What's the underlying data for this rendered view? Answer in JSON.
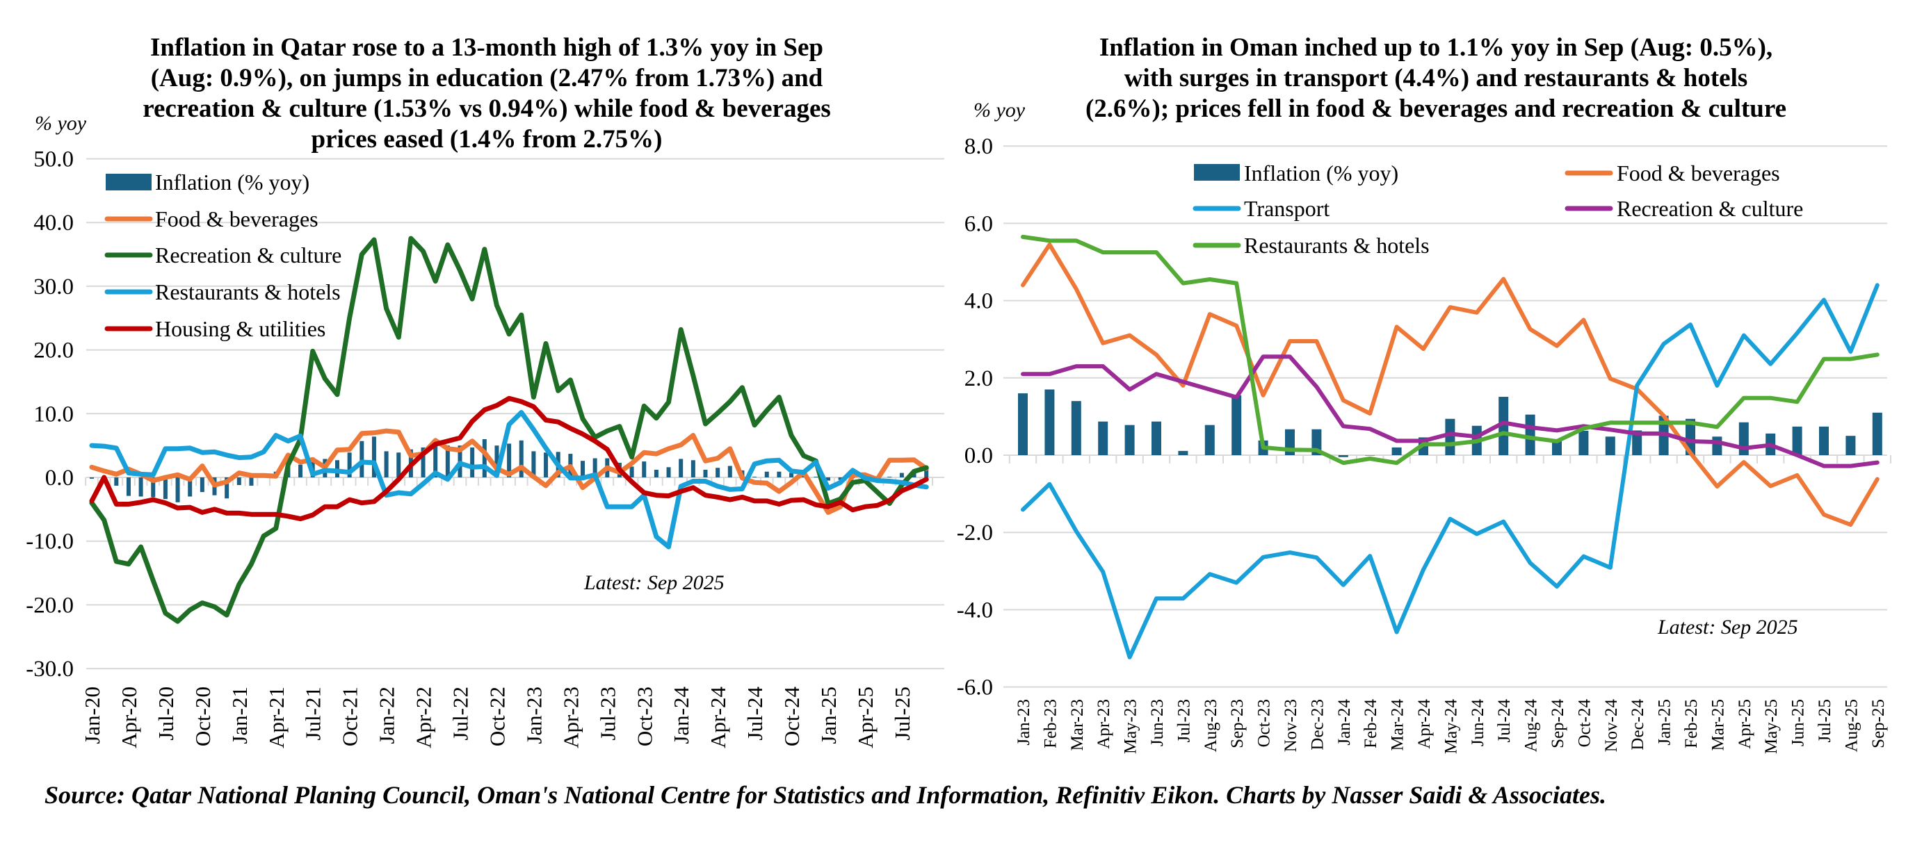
{
  "source": "Source: Qatar National Planing Council, Oman's National Centre for Statistics and Information, Refinitiv Eikon. Charts by Nasser Saidi & Associates.",
  "colors": {
    "inflation_bar": "#1a5f84",
    "food": "#ed7838",
    "recreation_qatar": "#1f6e26",
    "restaurants_qatar": "#1aa0d8",
    "housing": "#c00000",
    "transport": "#19a0d8",
    "recreation_oman": "#9b2b96",
    "restaurants_oman": "#53aa34",
    "grid": "#d9d9d9"
  },
  "chart_data": [
    {
      "id": "qatar",
      "type": "bar+line",
      "title_lines": [
        "Inflation in Qatar rose to a 13-month high of 1.3% yoy in Sep",
        "(Aug: 0.9%), on jumps in education (2.47% from 1.73%) and",
        "recreation & culture (1.53% vs 0.94%) while food & beverages",
        "prices eased (1.4% from 2.75%)"
      ],
      "ylabel": "% yoy",
      "ylim": [
        -30,
        50
      ],
      "yticks": [
        50,
        40,
        30,
        20,
        10,
        0,
        -10,
        -20,
        -30
      ],
      "ytick_labels": [
        "50.0",
        "40.0",
        "30.0",
        "20.0",
        "10.0",
        "0.0",
        "-10.0",
        "-20.0",
        "-30.0"
      ],
      "grid": true,
      "legend_position": "top-left",
      "annotation": "Latest: Sep 2025",
      "x": [
        "Jan-20",
        "Feb-20",
        "Mar-20",
        "Apr-20",
        "May-20",
        "Jun-20",
        "Jul-20",
        "Aug-20",
        "Sep-20",
        "Oct-20",
        "Nov-20",
        "Dec-20",
        "Jan-21",
        "Feb-21",
        "Mar-21",
        "Apr-21",
        "May-21",
        "Jun-21",
        "Jul-21",
        "Aug-21",
        "Sep-21",
        "Oct-21",
        "Nov-21",
        "Dec-21",
        "Jan-22",
        "Feb-22",
        "Mar-22",
        "Apr-22",
        "May-22",
        "Jun-22",
        "Jul-22",
        "Aug-22",
        "Sep-22",
        "Oct-22",
        "Nov-22",
        "Dec-22",
        "Jan-23",
        "Feb-23",
        "Mar-23",
        "Apr-23",
        "May-23",
        "Jun-23",
        "Jul-23",
        "Aug-23",
        "Sep-23",
        "Oct-23",
        "Nov-23",
        "Dec-23",
        "Jan-24",
        "Feb-24",
        "Mar-24",
        "Apr-24",
        "May-24",
        "Jun-24",
        "Jul-24",
        "Aug-24",
        "Sep-24",
        "Oct-24",
        "Nov-24",
        "Dec-24",
        "Jan-25",
        "Feb-25",
        "Mar-25",
        "Apr-25",
        "May-25",
        "Jun-25",
        "Jul-25",
        "Aug-25",
        "Sep-25"
      ],
      "xtick_labels": [
        "Jan-20",
        "Apr-20",
        "Jul-20",
        "Oct-20",
        "Jan-21",
        "Apr-21",
        "Jul-21",
        "Oct-21",
        "Jan-22",
        "Apr-22",
        "Jul-22",
        "Oct-22",
        "Jan-23",
        "Apr-23",
        "Jul-23",
        "Oct-23",
        "Jan-24",
        "Apr-24",
        "Jul-24",
        "Oct-24",
        "Jan-25",
        "Apr-25",
        "Jul-25"
      ],
      "series": [
        {
          "name": "Inflation (% yoy)",
          "kind": "bar",
          "color_key": "inflation_bar",
          "values": [
            -0.2,
            0.0,
            -1.3,
            -2.9,
            -3.0,
            -3.1,
            -3.4,
            -3.9,
            -3.0,
            -2.3,
            -2.8,
            -3.3,
            -1.2,
            -1.3,
            0.0,
            0.9,
            1.6,
            2.0,
            3.1,
            2.9,
            2.7,
            3.9,
            5.7,
            6.4,
            4.1,
            3.9,
            4.4,
            4.7,
            5.0,
            5.0,
            5.0,
            4.7,
            6.0,
            5.0,
            5.3,
            5.8,
            4.1,
            3.9,
            4.0,
            3.7,
            2.6,
            3.0,
            3.0,
            2.3,
            1.7,
            2.5,
            1.2,
            1.6,
            2.9,
            2.7,
            1.2,
            1.5,
            1.8,
            1.1,
            0.1,
            0.9,
            0.9,
            0.7,
            0.6,
            0.1,
            -0.5,
            -0.4,
            -0.1,
            0.1,
            0.1,
            0.1,
            0.7,
            0.9,
            1.3
          ]
        },
        {
          "name": "Food & beverages",
          "kind": "line",
          "color_key": "food",
          "values": [
            1.6,
            1.0,
            0.5,
            1.3,
            0.5,
            -0.5,
            0.0,
            0.4,
            -0.3,
            1.8,
            -1.2,
            -0.7,
            0.7,
            0.3,
            0.3,
            0.2,
            3.5,
            2.4,
            2.8,
            1.6,
            4.3,
            4.4,
            6.9,
            7.0,
            7.3,
            7.1,
            3.4,
            3.7,
            5.8,
            4.5,
            4.3,
            5.7,
            3.9,
            1.4,
            0.5,
            1.6,
            0.1,
            -1.3,
            0.8,
            1.7,
            -1.6,
            -0.1,
            1.5,
            0.8,
            2.2,
            3.9,
            3.7,
            4.5,
            5.1,
            6.6,
            2.6,
            3.0,
            4.5,
            -0.1,
            -0.8,
            -0.9,
            -2.2,
            -0.8,
            0.8,
            -2.3,
            -5.5,
            -4.6,
            0.4,
            0.4,
            -0.3,
            2.7,
            2.7,
            2.75,
            1.4
          ]
        },
        {
          "name": "Recreation & culture",
          "kind": "line",
          "color_key": "recreation_qatar",
          "values": [
            -4.0,
            -6.7,
            -13.2,
            -13.6,
            -10.9,
            -16.2,
            -21.3,
            -22.6,
            -20.8,
            -19.7,
            -20.3,
            -21.6,
            -16.8,
            -13.6,
            -9.2,
            -8.0,
            2.0,
            6.0,
            19.8,
            15.5,
            13.0,
            25.0,
            35.0,
            37.3,
            26.5,
            22.0,
            37.5,
            35.5,
            30.8,
            36.5,
            32.5,
            28.0,
            35.8,
            27.0,
            22.5,
            25.5,
            12.6,
            21.0,
            13.6,
            15.3,
            9.2,
            6.3,
            7.3,
            8.0,
            3.2,
            11.2,
            9.3,
            11.8,
            23.2,
            16.0,
            8.4,
            10.1,
            11.9,
            14.1,
            8.2,
            10.5,
            12.6,
            6.6,
            3.4,
            2.6,
            -4.1,
            -3.4,
            -0.8,
            -0.5,
            -2.3,
            -4.1,
            -1.2,
            0.94,
            1.53
          ]
        },
        {
          "name": "Restaurants & hotels",
          "kind": "line",
          "color_key": "restaurants_qatar",
          "values": [
            5.0,
            4.9,
            4.6,
            0.7,
            0.5,
            0.4,
            4.5,
            4.5,
            4.6,
            3.9,
            4.0,
            3.5,
            3.1,
            3.2,
            4.0,
            6.6,
            5.7,
            6.5,
            0.5,
            1.1,
            1.0,
            0.8,
            2.4,
            2.3,
            -2.8,
            -2.4,
            -2.6,
            -1.0,
            0.7,
            -0.3,
            2.2,
            1.6,
            1.7,
            0.3,
            8.3,
            10.2,
            7.5,
            4.6,
            1.9,
            -0.1,
            -0.1,
            0.4,
            -4.6,
            -4.6,
            -4.6,
            -2.8,
            -9.3,
            -10.9,
            -1.4,
            -0.6,
            -0.6,
            -1.4,
            -1.9,
            -1.8,
            2.1,
            2.6,
            2.7,
            1.0,
            0.8,
            2.4,
            -1.7,
            -0.8,
            1.1,
            -0.1,
            -0.5,
            -0.6,
            -0.8,
            -1.2,
            -1.5
          ]
        },
        {
          "name": "Housing & utilities",
          "kind": "line",
          "color_key": "housing",
          "values": [
            -3.7,
            0.0,
            -4.2,
            -4.2,
            -3.9,
            -3.5,
            -4.0,
            -4.8,
            -4.7,
            -5.5,
            -5.0,
            -5.6,
            -5.6,
            -5.8,
            -5.8,
            -5.8,
            -6.1,
            -6.5,
            -5.9,
            -4.6,
            -4.6,
            -3.5,
            -4.0,
            -3.8,
            -2.2,
            -0.3,
            1.9,
            3.7,
            5.2,
            5.7,
            6.2,
            8.8,
            10.6,
            11.3,
            12.4,
            11.9,
            11.1,
            9.0,
            8.7,
            7.7,
            6.8,
            5.7,
            4.4,
            1.2,
            -0.7,
            -2.4,
            -2.8,
            -2.9,
            -2.2,
            -1.6,
            -2.8,
            -3.1,
            -3.5,
            -3.1,
            -3.7,
            -3.7,
            -4.2,
            -3.6,
            -3.5,
            -4.3,
            -4.6,
            -3.9,
            -5.1,
            -4.6,
            -4.4,
            -3.6,
            -2.1,
            -1.3,
            -0.3
          ]
        }
      ]
    },
    {
      "id": "oman",
      "type": "bar+line",
      "title_lines": [
        "Inflation in Oman inched up to 1.1% yoy in Sep (Aug: 0.5%),",
        "with surges in transport (4.4%) and restaurants & hotels",
        "(2.6%); prices fell in food & beverages and recreation & culture"
      ],
      "ylabel": "% yoy",
      "ylim": [
        -6,
        8
      ],
      "yticks": [
        8,
        6,
        4,
        2,
        0,
        -2,
        -4,
        -6
      ],
      "ytick_labels": [
        "8.0",
        "6.0",
        "4.0",
        "2.0",
        "0.0",
        "-2.0",
        "-4.0",
        "-6.0"
      ],
      "grid": true,
      "legend_position": "top",
      "annotation": "Latest: Sep 2025",
      "x": [
        "Jan-23",
        "Feb-23",
        "Mar-23",
        "Apr-23",
        "May-23",
        "Jun-23",
        "Jul-23",
        "Aug-23",
        "Sep-23",
        "Oct-23",
        "Nov-23",
        "Dec-23",
        "Jan-24",
        "Feb-24",
        "Mar-24",
        "Apr-24",
        "May-24",
        "Jun-24",
        "Jul-24",
        "Aug-24",
        "Sep-24",
        "Oct-24",
        "Nov-24",
        "Dec-24",
        "Jan-25",
        "Feb-25",
        "Mar-25",
        "Apr-25",
        "May-25",
        "Jun-25",
        "Jul-25",
        "Aug-25",
        "Sep-25"
      ],
      "series": [
        {
          "name": "Inflation (% yoy)",
          "kind": "bar",
          "color_key": "inflation_bar",
          "values": [
            1.6,
            1.7,
            1.4,
            0.87,
            0.78,
            0.87,
            0.11,
            0.78,
            1.55,
            0.38,
            0.67,
            0.67,
            -0.05,
            0.0,
            0.2,
            0.46,
            0.94,
            0.76,
            1.51,
            1.05,
            0.4,
            0.63,
            0.48,
            0.64,
            1.02,
            0.94,
            0.48,
            0.85,
            0.56,
            0.74,
            0.74,
            0.5,
            1.1
          ]
        },
        {
          "name": "Food & beverages",
          "kind": "line",
          "color_key": "food",
          "values": [
            4.4,
            5.45,
            4.3,
            2.9,
            3.1,
            2.6,
            1.8,
            3.65,
            3.35,
            1.55,
            2.95,
            2.95,
            1.42,
            1.08,
            3.32,
            2.75,
            3.83,
            3.69,
            4.56,
            3.26,
            2.83,
            3.5,
            1.98,
            1.71,
            1.02,
            0.06,
            -0.81,
            -0.18,
            -0.8,
            -0.52,
            -1.54,
            -1.8,
            -0.62
          ]
        },
        {
          "name": "Transport",
          "kind": "line",
          "color_key": "transport",
          "values": [
            -1.41,
            -0.75,
            -1.97,
            -3.02,
            -5.23,
            -3.71,
            -3.71,
            -3.08,
            -3.3,
            -2.64,
            -2.52,
            -2.65,
            -3.36,
            -2.61,
            -4.58,
            -2.96,
            -1.65,
            -2.04,
            -1.72,
            -2.79,
            -3.4,
            -2.62,
            -2.91,
            1.8,
            2.88,
            3.38,
            1.8,
            3.1,
            2.36,
            3.16,
            4.02,
            2.68,
            4.4
          ]
        },
        {
          "name": "Recreation & culture",
          "kind": "line",
          "color_key": "recreation_oman",
          "values": [
            2.1,
            2.1,
            2.3,
            2.3,
            1.7,
            2.1,
            1.9,
            1.7,
            1.5,
            2.55,
            2.55,
            1.77,
            0.75,
            0.68,
            0.37,
            0.37,
            0.55,
            0.48,
            0.84,
            0.72,
            0.64,
            0.75,
            0.66,
            0.56,
            0.56,
            0.36,
            0.34,
            0.18,
            0.26,
            0.0,
            -0.28,
            -0.28,
            -0.19
          ]
        },
        {
          "name": "Restaurants & hotels",
          "kind": "line",
          "color_key": "restaurants_oman",
          "values": [
            5.65,
            5.55,
            5.55,
            5.25,
            5.25,
            5.25,
            4.45,
            4.55,
            4.45,
            0.2,
            0.14,
            0.13,
            -0.2,
            -0.09,
            -0.2,
            0.28,
            0.28,
            0.36,
            0.57,
            0.45,
            0.36,
            0.69,
            0.84,
            0.84,
            0.84,
            0.84,
            0.73,
            1.48,
            1.48,
            1.38,
            2.49,
            2.49,
            2.6
          ]
        }
      ],
      "legend_order": [
        "Inflation (% yoy)",
        "Food & beverages",
        "Transport",
        "Recreation & culture",
        "Restaurants & hotels"
      ]
    }
  ]
}
